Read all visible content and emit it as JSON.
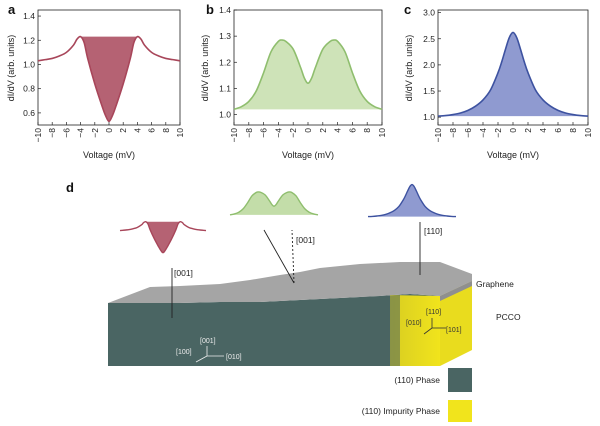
{
  "figure": {
    "colors": {
      "red": "#a8465a",
      "red_fill": "#a8465a",
      "green": "#8fbe6e",
      "green_fill": "#b9d79a",
      "blue": "#3d52a0",
      "blue_fill": "#7b88c8",
      "phase": "#4a6563",
      "impurity": "#f1e41c",
      "graphene": "#a5a5a5"
    },
    "panel_d": {
      "letter": "d",
      "labels": {
        "dir_left": "[001]",
        "dir_mid": "[001]",
        "dir_right": "[110]",
        "graphene": "Graphene",
        "pcco": "PCCO",
        "axes_white": [
          "[001]",
          "[100]",
          "[010]"
        ],
        "axes_yellow": [
          "[110]",
          "[010]",
          "[101]"
        ]
      },
      "legend": [
        {
          "label": "(110) Phase",
          "color": "#4a6563"
        },
        {
          "label": "(110) Impurity Phase",
          "color": "#f1e41c"
        }
      ]
    }
  },
  "chart_data": [
    {
      "type": "area",
      "panel": "a",
      "xlabel": "Voltage (mV)",
      "ylabel": "dI/dV (arb. units)",
      "xlim": [
        -10,
        10
      ],
      "ylim": [
        0.5,
        1.45
      ],
      "xticks": [
        -10,
        -8,
        -6,
        -4,
        -2,
        0,
        2,
        4,
        6,
        8,
        10
      ],
      "yticks": [
        0.6,
        0.8,
        1.0,
        1.2,
        1.4
      ],
      "ytick_labels": [
        "0.6",
        "0.8",
        "1.0",
        "1.2",
        "1.4"
      ],
      "x": [
        -10,
        -9,
        -8,
        -7,
        -6,
        -5,
        -4.5,
        -4,
        -3.5,
        -3,
        -2,
        -1,
        -0.5,
        0,
        0.5,
        1,
        2,
        3,
        3.5,
        4,
        4.5,
        5,
        6,
        7,
        8,
        9,
        10
      ],
      "y": [
        1.03,
        1.04,
        1.05,
        1.07,
        1.1,
        1.16,
        1.21,
        1.23,
        1.18,
        1.05,
        0.84,
        0.66,
        0.58,
        0.53,
        0.58,
        0.66,
        0.84,
        1.05,
        1.18,
        1.23,
        1.21,
        1.16,
        1.1,
        1.07,
        1.05,
        1.04,
        1.03
      ],
      "fill_between_x": [
        -4,
        4
      ],
      "fill_top": 1.23
    },
    {
      "type": "area",
      "panel": "b",
      "xlabel": "Voltage (mV)",
      "ylabel": "dI/dV (arb. units)",
      "xlim": [
        -10,
        10
      ],
      "ylim": [
        0.96,
        1.4
      ],
      "xticks": [
        -10,
        -8,
        -6,
        -4,
        -2,
        0,
        2,
        4,
        6,
        8,
        10
      ],
      "yticks": [
        1.0,
        1.1,
        1.2,
        1.3,
        1.4
      ],
      "ytick_labels": [
        "1.0",
        "1.1",
        "1.2",
        "1.3",
        "1.4"
      ],
      "x": [
        -10,
        -9,
        -8,
        -7,
        -6,
        -5,
        -4,
        -3.5,
        -3,
        -2,
        -1,
        -0.5,
        0,
        0.5,
        1,
        2,
        3,
        3.5,
        4,
        5,
        6,
        7,
        8,
        9,
        10
      ],
      "y": [
        1.02,
        1.03,
        1.05,
        1.09,
        1.16,
        1.24,
        1.28,
        1.285,
        1.28,
        1.25,
        1.18,
        1.14,
        1.12,
        1.14,
        1.18,
        1.25,
        1.28,
        1.285,
        1.28,
        1.24,
        1.16,
        1.09,
        1.05,
        1.03,
        1.02
      ],
      "fill_baseline": 1.02
    },
    {
      "type": "area",
      "panel": "c",
      "xlabel": "Voltage (mV)",
      "ylabel": "dI/dV (arb. units)",
      "xlim": [
        -10,
        10
      ],
      "ylim": [
        0.85,
        3.05
      ],
      "xticks": [
        -10,
        -8,
        -6,
        -4,
        -2,
        0,
        2,
        4,
        6,
        8,
        10
      ],
      "yticks": [
        1.0,
        1.5,
        2.0,
        2.5,
        3.0
      ],
      "ytick_labels": [
        "1.0",
        "1.5",
        "2.0",
        "2.5",
        "3.0"
      ],
      "x": [
        -10,
        -9,
        -8,
        -7,
        -6,
        -5,
        -4,
        -3,
        -2,
        -1.5,
        -1,
        -0.5,
        0,
        0.5,
        1,
        1.5,
        2,
        3,
        4,
        5,
        6,
        7,
        8,
        9,
        10
      ],
      "y": [
        1.02,
        1.03,
        1.05,
        1.08,
        1.13,
        1.21,
        1.33,
        1.52,
        1.85,
        2.06,
        2.3,
        2.52,
        2.62,
        2.52,
        2.3,
        2.06,
        1.85,
        1.52,
        1.33,
        1.21,
        1.13,
        1.08,
        1.05,
        1.03,
        1.02
      ],
      "fill_baseline": 1.02
    }
  ]
}
